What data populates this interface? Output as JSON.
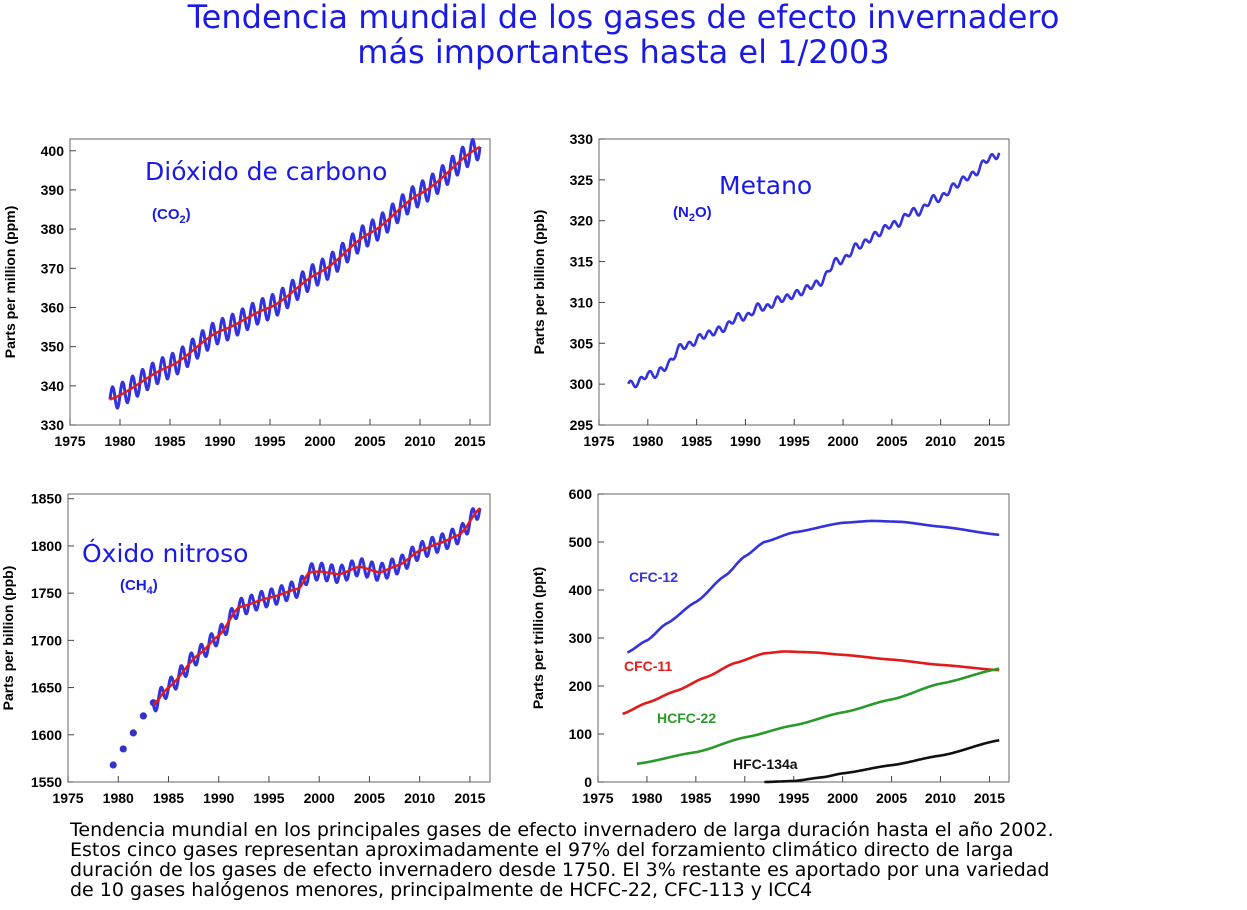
{
  "page": {
    "title_lines": [
      "Tendencia mundial de los gases de efecto invernadero",
      "más importantes hasta el 1/2003"
    ],
    "caption_lines": [
      "Tendencia mundial en los principales gases de efecto invernadero de larga duración hasta el año 2002.",
      "Estos cinco gases representan aproximadamente el 97% del forzamiento climático directo de larga",
      "duración de los gases de efecto invernadero desde 1750. El 3% restante es aportado por una variedad",
      "de 10 gases halógenos menores, principalmente de HCFC-22, CFC-113 y ICC4"
    ]
  },
  "chart_data": [
    {
      "id": "co2",
      "type": "line",
      "title": "Dióxido de carbono",
      "subtitle": "(CO",
      "subtitle_sub": "2",
      "subtitle_end": ")",
      "xlabel": "",
      "ylabel": "Parts per million (ppm)",
      "xlim": [
        1975,
        2017
      ],
      "ylim": [
        330,
        403
      ],
      "xticks": [
        1975,
        1980,
        1985,
        1990,
        1995,
        2000,
        2005,
        2010,
        2015
      ],
      "yticks": [
        330,
        340,
        350,
        360,
        370,
        380,
        390,
        400
      ],
      "seasonal_amplitude": 3,
      "series": [
        {
          "name": "",
          "color": "#3333dd",
          "style": "seasonal",
          "x": [
            1979,
            1985,
            1990,
            1995,
            2000,
            2005,
            2010,
            2016
          ],
          "y": [
            336.5,
            345,
            354,
            360,
            369,
            379,
            389,
            401
          ]
        },
        {
          "name": "",
          "color": "#e31a1c",
          "style": "trend",
          "x": [
            1979,
            1985,
            1990,
            1995,
            2000,
            2005,
            2010,
            2016
          ],
          "y": [
            336.5,
            345,
            354,
            360,
            369,
            379,
            389,
            401
          ]
        }
      ]
    },
    {
      "id": "ch4",
      "type": "line",
      "title": "Metano",
      "subtitle": "(N",
      "subtitle_sub": "2",
      "subtitle_end": "O)",
      "xlabel": "",
      "ylabel": "Parts per billion (ppb)",
      "xlim": [
        1975,
        2017
      ],
      "ylim": [
        295,
        330
      ],
      "xticks": [
        1975,
        1980,
        1985,
        1990,
        1995,
        2000,
        2005,
        2010,
        2015
      ],
      "yticks": [
        295,
        300,
        305,
        310,
        315,
        320,
        325,
        330
      ],
      "seasonal_amplitude": 0.4,
      "series": [
        {
          "name": "",
          "color": "#3333dd",
          "style": "noisy",
          "x": [
            1978,
            1979,
            1980,
            1981,
            1983,
            1985,
            1987,
            1990,
            1993,
            1995,
            1997,
            2000,
            2003,
            2005,
            2008,
            2010,
            2013,
            2016
          ],
          "y": [
            300,
            300,
            301.5,
            301,
            304,
            305.5,
            306.5,
            308.5,
            310,
            311,
            312,
            315.5,
            318,
            319.5,
            321.5,
            323,
            325.5,
            328.5
          ]
        }
      ]
    },
    {
      "id": "n2o",
      "type": "line",
      "title": "Óxido nitroso",
      "subtitle": "(CH",
      "subtitle_sub": "4",
      "subtitle_end": ")",
      "xlabel": "",
      "ylabel": "Parts per billion (ppb)",
      "xlim": [
        1975,
        2017
      ],
      "ylim": [
        1550,
        1855
      ],
      "xticks": [
        1975,
        1980,
        1985,
        1990,
        1995,
        2000,
        2005,
        2010,
        2015
      ],
      "yticks": [
        1550,
        1600,
        1650,
        1700,
        1750,
        1800,
        1850
      ],
      "seasonal_amplitude": 9,
      "dots": {
        "color": "#3333cc",
        "x": [
          1979.5,
          1980.5,
          1981.5,
          1982.5,
          1983.5
        ],
        "y": [
          1568,
          1585,
          1602,
          1620,
          1634
        ]
      },
      "series": [
        {
          "name": "",
          "color": "#3333dd",
          "style": "seasonal",
          "x": [
            1983.5,
            1985,
            1988,
            1990,
            1992,
            1995,
            1998,
            1999,
            2000,
            2002,
            2004,
            2006,
            2008,
            2010,
            2012,
            2014,
            2016
          ],
          "y": [
            1632,
            1650,
            1685,
            1705,
            1735,
            1745,
            1755,
            1772,
            1773,
            1770,
            1778,
            1772,
            1780,
            1795,
            1803,
            1812,
            1840
          ]
        },
        {
          "name": "",
          "color": "#e31a1c",
          "style": "trend",
          "x": [
            1983.5,
            1985,
            1988,
            1990,
            1992,
            1995,
            1998,
            1999,
            2000,
            2002,
            2004,
            2006,
            2008,
            2010,
            2012,
            2014,
            2016
          ],
          "y": [
            1632,
            1650,
            1685,
            1705,
            1735,
            1745,
            1755,
            1772,
            1773,
            1770,
            1778,
            1772,
            1780,
            1795,
            1803,
            1812,
            1840
          ]
        }
      ]
    },
    {
      "id": "cfc",
      "type": "line",
      "title": "",
      "subtitle": "",
      "subtitle_sub": "",
      "subtitle_end": "",
      "xlabel": "",
      "ylabel": "Parts per trillion (ppt)",
      "xlim": [
        1975,
        2017
      ],
      "ylim": [
        0,
        600
      ],
      "xticks": [
        1975,
        1980,
        1985,
        1990,
        1995,
        2000,
        2005,
        2010,
        2015
      ],
      "yticks": [
        0,
        100,
        200,
        300,
        400,
        500,
        600
      ],
      "series": [
        {
          "name": "CFC-12",
          "color": "#3333dd",
          "style": "smooth",
          "x": [
            1978,
            1980,
            1982,
            1985,
            1988,
            1990,
            1992,
            1995,
            2000,
            2003,
            2006,
            2010,
            2016
          ],
          "y": [
            270,
            295,
            330,
            375,
            430,
            470,
            500,
            520,
            540,
            544,
            542,
            532,
            515
          ]
        },
        {
          "name": "CFC-11",
          "color": "#e31a1c",
          "style": "smooth",
          "x": [
            1977.5,
            1980,
            1983,
            1986,
            1989,
            1992,
            1994,
            1997,
            2000,
            2005,
            2010,
            2016
          ],
          "y": [
            142,
            165,
            190,
            218,
            248,
            268,
            272,
            270,
            265,
            255,
            244,
            233
          ]
        },
        {
          "name": "HCFC-22",
          "color": "#2a9a2a",
          "style": "smooth",
          "x": [
            1979,
            1985,
            1990,
            1995,
            2000,
            2005,
            2010,
            2016
          ],
          "y": [
            38,
            62,
            93,
            118,
            145,
            172,
            205,
            236
          ]
        },
        {
          "name": "HFC-134a",
          "color": "#111111",
          "style": "smooth",
          "x": [
            1992,
            1995,
            1998,
            2000,
            2005,
            2010,
            2016
          ],
          "y": [
            0,
            2,
            10,
            18,
            35,
            55,
            87
          ]
        }
      ]
    }
  ]
}
